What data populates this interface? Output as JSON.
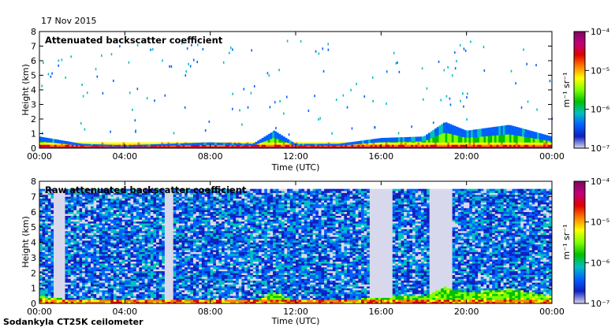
{
  "header": {
    "date": "17 Nov 2015"
  },
  "footer": {
    "instrument": "Sodankyla CT25K ceilometer"
  },
  "colorbar": {
    "unit_label": "m⁻¹ sr⁻¹",
    "tick_labels": [
      "10⁻⁴",
      "10⁻⁵",
      "10⁻⁶",
      "10⁻⁷"
    ],
    "log_values": [
      -4,
      -5,
      -6,
      -7
    ],
    "colors": [
      "#7b0a5a",
      "#c0007a",
      "#e00000",
      "#ff8000",
      "#ffff00",
      "#80ff00",
      "#00c000",
      "#00c0c0",
      "#0060ff",
      "#1020c0",
      "#d8d8ec"
    ]
  },
  "chart_data": [
    {
      "type": "heatmap",
      "title": "Attenuated backscatter coefficient",
      "xlabel": "Time (UTC)",
      "ylabel": "Height (km)",
      "x_ticks": [
        "00:00",
        "04:00",
        "08:00",
        "12:00",
        "16:00",
        "20:00",
        "00:00"
      ],
      "x_range_hours": [
        0,
        24
      ],
      "y_ticks": [
        0,
        1,
        2,
        3,
        4,
        5,
        6,
        7,
        8
      ],
      "y_range_km": [
        0,
        8
      ],
      "color_scale": "log10",
      "color_range": [
        1e-07,
        0.0001
      ],
      "boundary_layer_top_km": {
        "hours": [
          0,
          2,
          4,
          6,
          8,
          10,
          11,
          12,
          14,
          16,
          18,
          19,
          20,
          22,
          24
        ],
        "height": [
          0.8,
          0.3,
          0.2,
          0.3,
          0.4,
          0.3,
          1.2,
          0.3,
          0.3,
          0.7,
          0.8,
          1.8,
          1.2,
          1.6,
          0.8
        ]
      }
    },
    {
      "type": "heatmap",
      "title": "Raw attenuated backscatter coefficient",
      "xlabel": "Time (UTC)",
      "ylabel": "Height (km)",
      "x_ticks": [
        "00:00",
        "04:00",
        "08:00",
        "12:00",
        "16:00",
        "20:00",
        "00:00"
      ],
      "x_range_hours": [
        0,
        24
      ],
      "y_ticks": [
        0,
        1,
        2,
        3,
        4,
        5,
        6,
        7,
        8
      ],
      "y_range_km": [
        0,
        8
      ],
      "data_top_km": 7.5,
      "color_scale": "log10",
      "color_range": [
        1e-07,
        0.0001
      ],
      "low_signal_gaps_hours": [
        [
          0.7,
          1.2
        ],
        [
          5.9,
          6.2
        ],
        [
          15.5,
          16.5
        ],
        [
          18.3,
          19.3
        ]
      ]
    }
  ]
}
